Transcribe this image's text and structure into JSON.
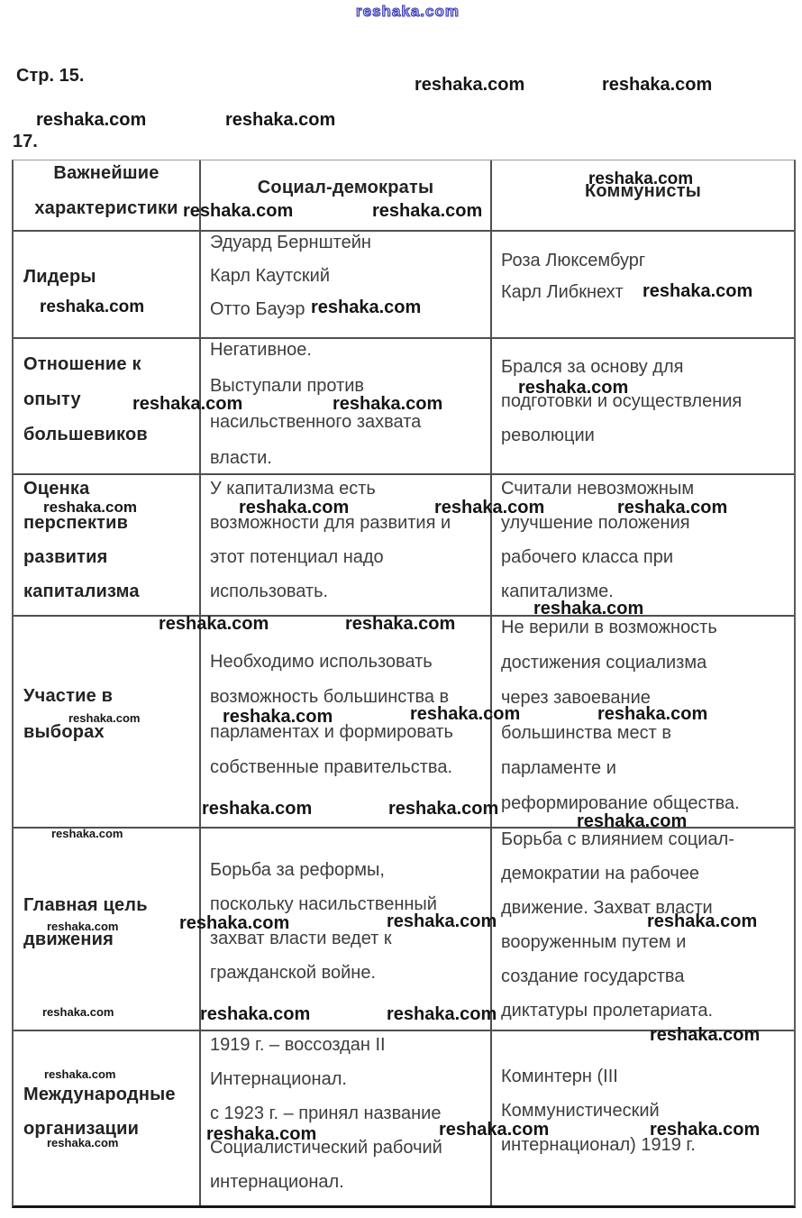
{
  "page": {
    "page_label": "Стр. 15.",
    "task_number": "17."
  },
  "watermark": {
    "text": "reshaka.com"
  },
  "table": {
    "header": {
      "col1_lines": [
        "Важнейшие",
        "характеристики"
      ],
      "col2": "Социал-демократы",
      "col3": "Коммунисты"
    },
    "rows": [
      {
        "col1_lines": [
          "Лидеры"
        ],
        "col2_lines": [
          "Эдуард Бернштейн",
          "Карл Каутский",
          "Отто Бауэр"
        ],
        "col3_lines": [
          "Роза Люксембург",
          "Карл Либкнехт"
        ]
      },
      {
        "col1_lines": [
          "Отношение к",
          "опыту",
          "большевиков"
        ],
        "col2_lines": [
          "Негативное.",
          "Выступали против",
          "насильственного захвата",
          "власти."
        ],
        "col3_lines": [
          "Брался за основу для",
          "подготовки и осуществления",
          "революции"
        ]
      },
      {
        "col1_lines": [
          "Оценка",
          "перспектив",
          "развития",
          "капитализма"
        ],
        "col2_lines": [
          "У капитализма есть",
          "возможности для развития и",
          "этот потенциал надо",
          "использовать."
        ],
        "col3_lines": [
          "Считали невозможным",
          "улучшение положения",
          "рабочего класса при",
          "капитализме."
        ]
      },
      {
        "col1_lines": [
          "Участие в",
          "выборах"
        ],
        "col2_lines": [
          "Необходимо использовать",
          "возможность большинства в",
          "парламентах и формировать",
          "собственные правительства."
        ],
        "col3_lines": [
          "Не верили в возможность",
          "достижения социализма",
          "через завоевание",
          "большинства мест в",
          "парламенте и",
          "реформирование общества."
        ]
      },
      {
        "col1_lines": [
          "Главная цель",
          "движения"
        ],
        "col2_lines": [
          "Борьба за реформы,",
          "поскольку насильственный",
          "захват власти ведет к",
          "гражданской войне."
        ],
        "col3_lines": [
          "Борьба с влиянием социал-",
          "демократии на рабочее",
          "движение. Захват власти",
          "вооруженным путем и",
          "создание государства",
          "диктатуры пролетариата."
        ]
      },
      {
        "col1_lines": [
          "Международные",
          "организации"
        ],
        "col2_lines": [
          "1919 г. – воссоздан II",
          "Интернационал.",
          "с 1923 г. – принял название",
          "Социалистический рабочий",
          "интернационал."
        ],
        "col3_lines": [
          "Коминтерн (III",
          "Коммунистический",
          "интернационал) 1919 г."
        ]
      }
    ]
  }
}
